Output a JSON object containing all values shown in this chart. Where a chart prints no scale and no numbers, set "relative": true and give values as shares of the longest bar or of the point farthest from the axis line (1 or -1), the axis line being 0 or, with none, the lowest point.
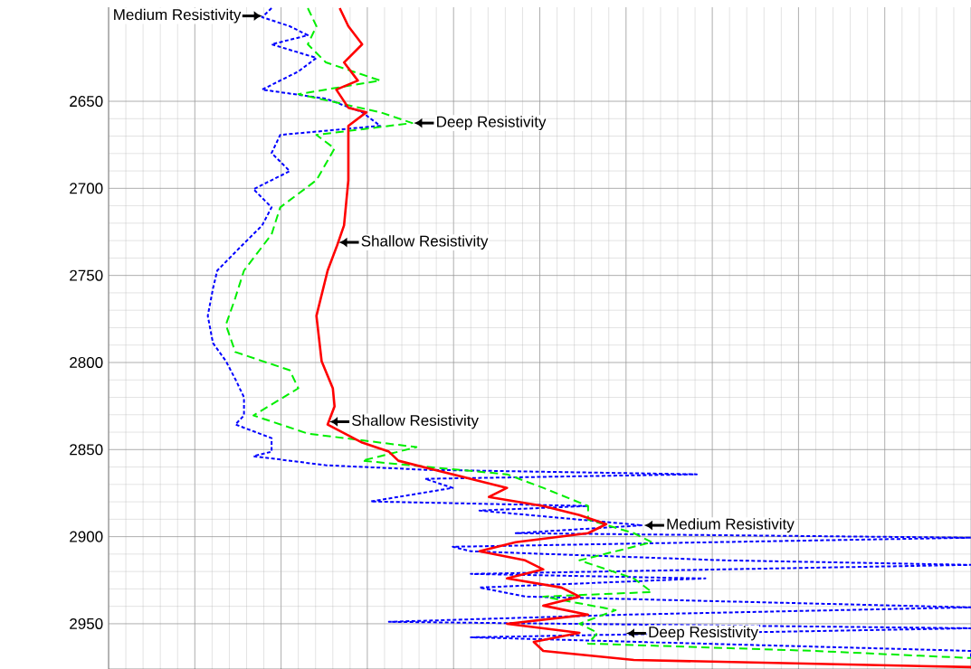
{
  "chart_data": {
    "type": "line",
    "orientation": "horizontal",
    "relative": true,
    "ylim": [
      2976,
      2596
    ],
    "yticks": [
      2650,
      2700,
      2750,
      2800,
      2850,
      2900,
      2950
    ],
    "grid": true,
    "series": [
      {
        "color": "#0000ff",
        "line_style": "dotted",
        "x": [
          2596.5,
          2601.7,
          2606.9,
          2612.1,
          2617.3,
          2625.1,
          2632.9,
          2643.3,
          2648.5,
          2656.3,
          2664.1,
          2669.3,
          2679.7,
          2690.1,
          2700.5,
          2710.9,
          2721.3,
          2731.6,
          2747.2,
          2757.6,
          2773.2,
          2788.8,
          2799.2,
          2809.6,
          2820.0,
          2830.4,
          2835.6,
          2843.4,
          2851.2,
          2853.8,
          2859.0,
          2861.6,
          2864.2,
          2866.8,
          2872.0,
          2879.8,
          2882.4,
          2885.0,
          2893.5,
          2898.0,
          2900.6,
          2905.8,
          2908.4,
          2913.6,
          2916.2,
          2921.4,
          2924.0,
          2929.2,
          2934.4,
          2940.6,
          2944.8,
          2948.9,
          2952.6,
          2957.8,
          2965.6,
          2969.7
        ],
        "values": [
          0.189,
          0.178,
          0.21,
          0.231,
          0.189,
          0.241,
          0.22,
          0.178,
          0.252,
          0.294,
          0.315,
          0.199,
          0.189,
          0.21,
          0.168,
          0.189,
          0.178,
          0.157,
          0.126,
          0.121,
          0.115,
          0.121,
          0.136,
          0.147,
          0.157,
          0.157,
          0.147,
          0.189,
          0.189,
          0.168,
          0.252,
          0.367,
          0.682,
          0.367,
          0.399,
          0.304,
          0.556,
          0.43,
          0.619,
          0.472,
          1.0,
          0.399,
          0.42,
          0.714,
          1.0,
          0.42,
          0.692,
          0.43,
          0.483,
          1.0,
          0.598,
          0.325,
          1.0,
          0.42,
          1.0,
          1.0
        ]
      },
      {
        "color": "#00ee00",
        "line_style": "dashed",
        "x": [
          2596.5,
          2606.9,
          2617.3,
          2627.7,
          2638.1,
          2645.9,
          2656.3,
          2662.5,
          2669.3,
          2677.1,
          2695.3,
          2710.9,
          2726.4,
          2747.2,
          2762.8,
          2778.4,
          2794.0,
          2804.4,
          2814.8,
          2830.4,
          2840.8,
          2848.6,
          2856.4,
          2864.2,
          2872.0,
          2882.4,
          2890.2,
          2898.0,
          2903.2,
          2913.6,
          2924.0,
          2931.8,
          2934.4,
          2942.2,
          2950.0,
          2955.2,
          2961.4,
          2965.6,
          2969.7
        ],
        "values": [
          0.231,
          0.241,
          0.231,
          0.252,
          0.315,
          0.22,
          0.315,
          0.352,
          0.241,
          0.262,
          0.241,
          0.199,
          0.189,
          0.157,
          0.147,
          0.136,
          0.147,
          0.21,
          0.22,
          0.168,
          0.231,
          0.357,
          0.294,
          0.462,
          0.504,
          0.556,
          0.556,
          0.609,
          0.63,
          0.546,
          0.609,
          0.63,
          0.504,
          0.588,
          0.546,
          0.567,
          0.556,
          0.818,
          1.0
        ]
      },
      {
        "color": "#ff0000",
        "line_style": "solid",
        "x": [
          2596.5,
          2606.9,
          2617.3,
          2627.7,
          2638.1,
          2643.3,
          2653.7,
          2656.3,
          2664.1,
          2695.3,
          2721.3,
          2732.7,
          2747.2,
          2773.2,
          2799.2,
          2814.8,
          2825.2,
          2835.6,
          2846.0,
          2851.2,
          2856.4,
          2861.6,
          2866.8,
          2872.0,
          2877.2,
          2882.4,
          2887.6,
          2892.8,
          2898.0,
          2903.2,
          2908.4,
          2913.6,
          2918.8,
          2924.0,
          2929.2,
          2934.4,
          2939.6,
          2944.8,
          2950.0,
          2955.2,
          2960.4,
          2965.6,
          2970.8,
          2974.9
        ],
        "values": [
          0.268,
          0.278,
          0.294,
          0.273,
          0.289,
          0.264,
          0.278,
          0.299,
          0.278,
          0.278,
          0.273,
          0.265,
          0.254,
          0.241,
          0.247,
          0.26,
          0.262,
          0.254,
          0.294,
          0.325,
          0.336,
          0.378,
          0.42,
          0.462,
          0.441,
          0.504,
          0.546,
          0.577,
          0.556,
          0.472,
          0.43,
          0.483,
          0.504,
          0.462,
          0.525,
          0.546,
          0.504,
          0.556,
          0.462,
          0.546,
          0.493,
          0.504,
          0.609,
          1.0
        ]
      }
    ],
    "annotations": [
      {
        "text": "Medium Resistivity",
        "x": 0.178,
        "y": 2601
      },
      {
        "text": "Deep Resistivity",
        "x": 0.352,
        "y": 2662.5
      },
      {
        "text": "Shallow Resistivity",
        "x": 0.265,
        "y": 2731
      },
      {
        "text": "Shallow Resistivity",
        "x": 0.254,
        "y": 2834
      },
      {
        "text": "Medium Resistivity",
        "x": 0.619,
        "y": 2893.5
      },
      {
        "text": "Deep Resistivity",
        "x": 0.598,
        "y": 2955.5
      }
    ]
  }
}
